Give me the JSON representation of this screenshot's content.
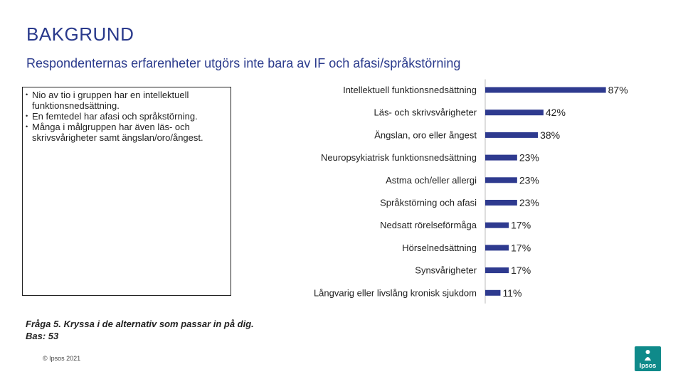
{
  "header": {
    "title": "BAKGRUND",
    "subtitle": "Respondenternas erfarenheter utgörs inte bara av IF och afasi/språkstörning"
  },
  "bullets": [
    "Nio av tio i gruppen har en intellektuell funktionsnedsättning.",
    "En femtedel har afasi och språkstörning.",
    "Många i målgruppen har även läs- och skrivsvårigheter samt ängslan/oro/ångest."
  ],
  "footnote": {
    "question": "Fråga 5. Kryssa i de alternativ som passar in på dig.",
    "base": "Bas: 53"
  },
  "copyright": "© Ipsos 2021",
  "logo": {
    "text": "Ipsos",
    "color": "#0f8a8a"
  },
  "colors": {
    "bar": "#2e3a8f",
    "title": "#2a3a8c"
  },
  "chart_data": {
    "type": "bar",
    "orientation": "horizontal",
    "categories": [
      "Intellektuell funktionsnedsättning",
      "Läs- och skrivsvårigheter",
      "Ängslan, oro eller ångest",
      "Neuropsykiatrisk funktionsnedsättning",
      "Astma och/eller allergi",
      "Språkstörning och afasi",
      "Nedsatt rörelseförmåga",
      "Hörselnedsättning",
      "Synsvårigheter",
      "Långvarig eller livslång kronisk sjukdom"
    ],
    "values": [
      87,
      42,
      38,
      23,
      23,
      23,
      17,
      17,
      17,
      11
    ],
    "value_labels": [
      "87%",
      "42%",
      "38%",
      "23%",
      "23%",
      "23%",
      "17%",
      "17%",
      "17%",
      "11%"
    ],
    "xlim": [
      0,
      100
    ],
    "grid": false,
    "legend": "none"
  }
}
